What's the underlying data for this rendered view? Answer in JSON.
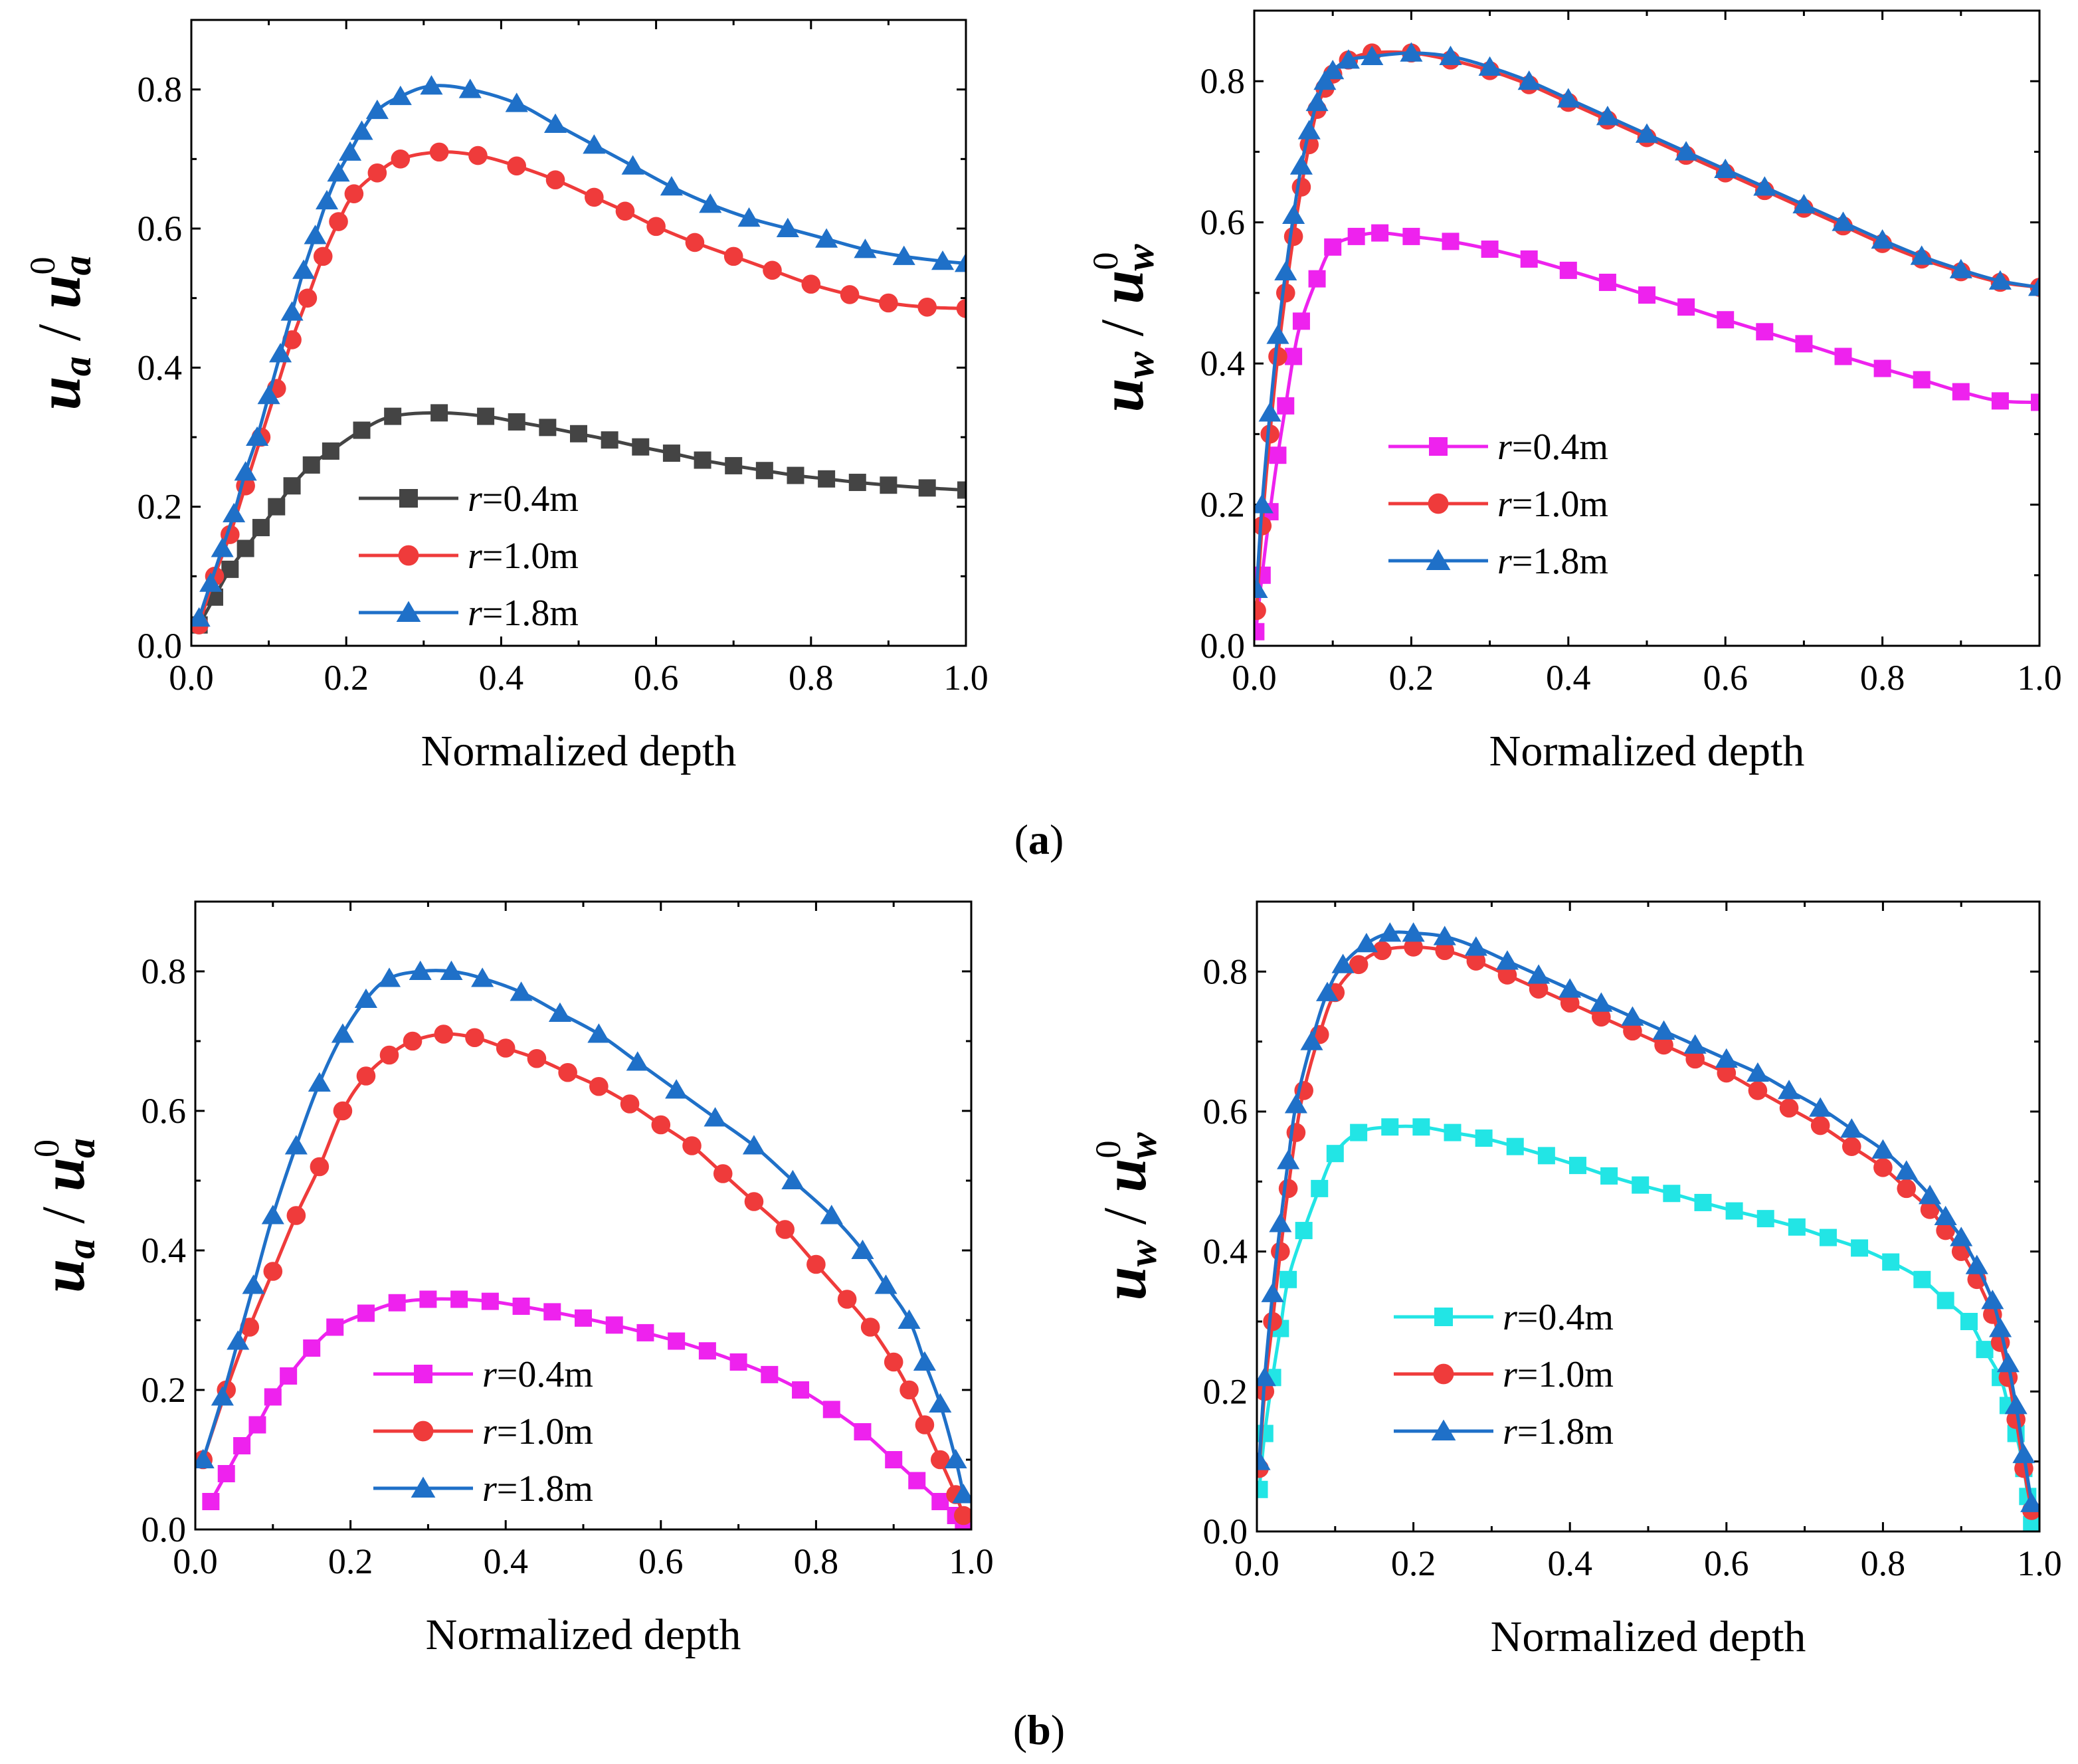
{
  "figure": {
    "panel_labels": [
      {
        "open": "(",
        "letter": "a",
        "close": ")"
      },
      {
        "open": "(",
        "letter": "b",
        "close": ")"
      }
    ]
  },
  "chart_data": [
    {
      "type": "line",
      "panel": "a-left",
      "xlabel": "Normalized depth",
      "ylabel": {
        "base": "u",
        "sub": "a",
        "sup": "0"
      },
      "xlim": [
        0,
        1
      ],
      "ylim": [
        0,
        0.9
      ],
      "xticks": [
        "0.0",
        "0.2",
        "0.4",
        "0.6",
        "0.8",
        "1.0"
      ],
      "yticks": [
        "0.0",
        "0.2",
        "0.4",
        "0.6",
        "0.8"
      ],
      "legend": {
        "position": "lower-middle",
        "entries": [
          {
            "italic": "r",
            "text": "=0.4m"
          },
          {
            "italic": "r",
            "text": "=1.0m"
          },
          {
            "italic": "r",
            "text": "=1.8m"
          }
        ]
      },
      "series": [
        {
          "label": "r=0.4m",
          "color": "#444444",
          "marker": "square",
          "x": [
            0.01,
            0.03,
            0.05,
            0.07,
            0.09,
            0.11,
            0.13,
            0.155,
            0.18,
            0.22,
            0.26,
            0.32,
            0.38,
            0.42,
            0.46,
            0.5,
            0.54,
            0.58,
            0.62,
            0.66,
            0.7,
            0.74,
            0.78,
            0.82,
            0.86,
            0.9,
            0.95,
            1.0
          ],
          "y": [
            0.03,
            0.07,
            0.11,
            0.14,
            0.17,
            0.2,
            0.23,
            0.26,
            0.28,
            0.31,
            0.33,
            0.335,
            0.33,
            0.322,
            0.314,
            0.305,
            0.296,
            0.286,
            0.277,
            0.267,
            0.259,
            0.252,
            0.245,
            0.24,
            0.235,
            0.231,
            0.227,
            0.224
          ]
        },
        {
          "label": "r=1.0m",
          "color": "#ef3b3b",
          "marker": "circle",
          "x": [
            0.01,
            0.03,
            0.05,
            0.07,
            0.09,
            0.11,
            0.13,
            0.15,
            0.17,
            0.19,
            0.21,
            0.24,
            0.27,
            0.32,
            0.37,
            0.42,
            0.47,
            0.52,
            0.56,
            0.6,
            0.65,
            0.7,
            0.75,
            0.8,
            0.85,
            0.9,
            0.95,
            1.0
          ],
          "y": [
            0.03,
            0.1,
            0.16,
            0.23,
            0.3,
            0.37,
            0.44,
            0.5,
            0.56,
            0.61,
            0.65,
            0.68,
            0.7,
            0.71,
            0.705,
            0.69,
            0.67,
            0.645,
            0.625,
            0.603,
            0.58,
            0.56,
            0.54,
            0.52,
            0.505,
            0.493,
            0.487,
            0.485
          ]
        },
        {
          "label": "r=1.8m",
          "color": "#1f70c8",
          "marker": "triangle",
          "x": [
            0.01,
            0.025,
            0.04,
            0.055,
            0.07,
            0.085,
            0.1,
            0.115,
            0.13,
            0.145,
            0.16,
            0.175,
            0.19,
            0.205,
            0.22,
            0.24,
            0.27,
            0.31,
            0.36,
            0.42,
            0.47,
            0.52,
            0.57,
            0.62,
            0.67,
            0.72,
            0.77,
            0.82,
            0.87,
            0.92,
            0.97,
            1.0
          ],
          "y": [
            0.04,
            0.09,
            0.14,
            0.19,
            0.25,
            0.3,
            0.36,
            0.42,
            0.48,
            0.54,
            0.59,
            0.64,
            0.68,
            0.71,
            0.74,
            0.77,
            0.79,
            0.805,
            0.8,
            0.78,
            0.75,
            0.72,
            0.69,
            0.66,
            0.635,
            0.615,
            0.6,
            0.585,
            0.57,
            0.56,
            0.553,
            0.55
          ]
        }
      ]
    },
    {
      "type": "line",
      "panel": "a-right",
      "xlabel": "Normalized depth",
      "ylabel": {
        "base": "u",
        "sub": "w",
        "sup": "0"
      },
      "xlim": [
        0,
        1
      ],
      "ylim": [
        0,
        0.9
      ],
      "xticks": [
        "0.0",
        "0.2",
        "0.4",
        "0.6",
        "0.8",
        "1.0"
      ],
      "yticks": [
        "0.0",
        "0.2",
        "0.4",
        "0.6",
        "0.8"
      ],
      "legend": {
        "position": "middle",
        "entries": [
          {
            "italic": "r",
            "text": "=0.4m"
          },
          {
            "italic": "r",
            "text": "=1.0m"
          },
          {
            "italic": "r",
            "text": "=1.8m"
          }
        ]
      },
      "series": [
        {
          "label": "r=0.4m",
          "color": "#ee22ee",
          "marker": "square",
          "x": [
            0.002,
            0.01,
            0.02,
            0.03,
            0.04,
            0.05,
            0.06,
            0.08,
            0.1,
            0.13,
            0.16,
            0.2,
            0.25,
            0.3,
            0.35,
            0.4,
            0.45,
            0.5,
            0.55,
            0.6,
            0.65,
            0.7,
            0.75,
            0.8,
            0.85,
            0.9,
            0.95,
            1.0
          ],
          "y": [
            0.02,
            0.1,
            0.19,
            0.27,
            0.34,
            0.41,
            0.46,
            0.52,
            0.565,
            0.58,
            0.585,
            0.58,
            0.573,
            0.562,
            0.548,
            0.532,
            0.515,
            0.497,
            0.48,
            0.462,
            0.445,
            0.428,
            0.41,
            0.393,
            0.377,
            0.36,
            0.347,
            0.345
          ]
        },
        {
          "label": "r=1.0m",
          "color": "#ef3b3b",
          "marker": "circle",
          "x": [
            0.003,
            0.01,
            0.02,
            0.03,
            0.04,
            0.05,
            0.06,
            0.07,
            0.08,
            0.09,
            0.1,
            0.12,
            0.15,
            0.2,
            0.25,
            0.3,
            0.35,
            0.4,
            0.45,
            0.5,
            0.55,
            0.6,
            0.65,
            0.7,
            0.75,
            0.8,
            0.85,
            0.9,
            0.95,
            1.0
          ],
          "y": [
            0.05,
            0.17,
            0.3,
            0.41,
            0.5,
            0.58,
            0.65,
            0.71,
            0.76,
            0.79,
            0.81,
            0.83,
            0.84,
            0.84,
            0.83,
            0.815,
            0.795,
            0.77,
            0.745,
            0.72,
            0.695,
            0.67,
            0.645,
            0.62,
            0.595,
            0.57,
            0.548,
            0.53,
            0.515,
            0.508
          ]
        },
        {
          "label": "r=1.8m",
          "color": "#1f70c8",
          "marker": "triangle",
          "x": [
            0.003,
            0.01,
            0.02,
            0.03,
            0.04,
            0.05,
            0.06,
            0.07,
            0.08,
            0.09,
            0.1,
            0.12,
            0.15,
            0.2,
            0.25,
            0.3,
            0.35,
            0.4,
            0.45,
            0.5,
            0.55,
            0.6,
            0.65,
            0.7,
            0.75,
            0.8,
            0.85,
            0.9,
            0.95,
            1.0
          ],
          "y": [
            0.08,
            0.2,
            0.33,
            0.44,
            0.53,
            0.61,
            0.68,
            0.73,
            0.77,
            0.8,
            0.815,
            0.83,
            0.835,
            0.84,
            0.835,
            0.82,
            0.8,
            0.775,
            0.75,
            0.725,
            0.7,
            0.675,
            0.65,
            0.625,
            0.6,
            0.575,
            0.552,
            0.533,
            0.517,
            0.508
          ]
        }
      ]
    },
    {
      "type": "line",
      "panel": "b-left",
      "xlabel": "Normalized depth",
      "ylabel": {
        "base": "u",
        "sub": "a",
        "sup": "0"
      },
      "xlim": [
        0,
        1
      ],
      "ylim": [
        0,
        0.9
      ],
      "xticks": [
        "0.0",
        "0.2",
        "0.4",
        "0.6",
        "0.8",
        "1.0"
      ],
      "yticks": [
        "0.0",
        "0.2",
        "0.4",
        "0.6",
        "0.8"
      ],
      "legend": {
        "position": "lower-middle",
        "entries": [
          {
            "italic": "r",
            "text": "=0.4m"
          },
          {
            "italic": "r",
            "text": "=1.0m"
          },
          {
            "italic": "r",
            "text": "=1.8m"
          }
        ]
      },
      "series": [
        {
          "label": "r=0.4m",
          "color": "#ee22ee",
          "marker": "square",
          "x": [
            0.02,
            0.04,
            0.06,
            0.08,
            0.1,
            0.12,
            0.15,
            0.18,
            0.22,
            0.26,
            0.3,
            0.34,
            0.38,
            0.42,
            0.46,
            0.5,
            0.54,
            0.58,
            0.62,
            0.66,
            0.7,
            0.74,
            0.78,
            0.82,
            0.86,
            0.9,
            0.93,
            0.96,
            0.98,
            0.99
          ],
          "y": [
            0.04,
            0.08,
            0.12,
            0.15,
            0.19,
            0.22,
            0.26,
            0.29,
            0.31,
            0.325,
            0.33,
            0.33,
            0.327,
            0.32,
            0.312,
            0.303,
            0.293,
            0.282,
            0.27,
            0.256,
            0.24,
            0.222,
            0.2,
            0.172,
            0.14,
            0.1,
            0.07,
            0.04,
            0.02,
            0.01
          ]
        },
        {
          "label": "r=1.0m",
          "color": "#ef3b3b",
          "marker": "circle",
          "x": [
            0.01,
            0.04,
            0.07,
            0.1,
            0.13,
            0.16,
            0.19,
            0.22,
            0.25,
            0.28,
            0.32,
            0.36,
            0.4,
            0.44,
            0.48,
            0.52,
            0.56,
            0.6,
            0.64,
            0.68,
            0.72,
            0.76,
            0.8,
            0.84,
            0.87,
            0.9,
            0.92,
            0.94,
            0.96,
            0.98,
            0.99
          ],
          "y": [
            0.1,
            0.2,
            0.29,
            0.37,
            0.45,
            0.52,
            0.6,
            0.65,
            0.68,
            0.7,
            0.71,
            0.705,
            0.69,
            0.675,
            0.655,
            0.635,
            0.61,
            0.58,
            0.55,
            0.51,
            0.47,
            0.43,
            0.38,
            0.33,
            0.29,
            0.24,
            0.2,
            0.15,
            0.1,
            0.05,
            0.02
          ]
        },
        {
          "label": "r=1.8m",
          "color": "#1f70c8",
          "marker": "triangle",
          "x": [
            0.01,
            0.035,
            0.055,
            0.075,
            0.1,
            0.13,
            0.16,
            0.19,
            0.22,
            0.25,
            0.29,
            0.33,
            0.37,
            0.42,
            0.47,
            0.52,
            0.57,
            0.62,
            0.67,
            0.72,
            0.77,
            0.82,
            0.86,
            0.89,
            0.92,
            0.94,
            0.96,
            0.98,
            0.99
          ],
          "y": [
            0.1,
            0.19,
            0.27,
            0.35,
            0.45,
            0.55,
            0.64,
            0.71,
            0.76,
            0.79,
            0.8,
            0.8,
            0.79,
            0.77,
            0.74,
            0.71,
            0.67,
            0.63,
            0.59,
            0.55,
            0.5,
            0.45,
            0.4,
            0.35,
            0.3,
            0.24,
            0.18,
            0.1,
            0.05
          ]
        }
      ]
    },
    {
      "type": "line",
      "panel": "b-right",
      "xlabel": "Normalized depth",
      "ylabel": {
        "base": "u",
        "sub": "w",
        "sup": "0"
      },
      "xlim": [
        0,
        1
      ],
      "ylim": [
        0,
        0.9
      ],
      "xticks": [
        "0.0",
        "0.2",
        "0.4",
        "0.6",
        "0.8",
        "1.0"
      ],
      "yticks": [
        "0.0",
        "0.2",
        "0.4",
        "0.6",
        "0.8"
      ],
      "legend": {
        "position": "lower-middle",
        "entries": [
          {
            "italic": "r",
            "text": "=0.4m"
          },
          {
            "italic": "r",
            "text": "=1.0m"
          },
          {
            "italic": "r",
            "text": "=1.8m"
          }
        ]
      },
      "series": [
        {
          "label": "r=0.4m",
          "color": "#22e5e5",
          "marker": "square",
          "x": [
            0.003,
            0.01,
            0.02,
            0.03,
            0.04,
            0.06,
            0.08,
            0.1,
            0.13,
            0.17,
            0.21,
            0.25,
            0.29,
            0.33,
            0.37,
            0.41,
            0.45,
            0.49,
            0.53,
            0.57,
            0.61,
            0.65,
            0.69,
            0.73,
            0.77,
            0.81,
            0.85,
            0.88,
            0.91,
            0.93,
            0.95,
            0.96,
            0.97,
            0.98,
            0.985,
            0.99
          ],
          "y": [
            0.06,
            0.14,
            0.22,
            0.29,
            0.36,
            0.43,
            0.49,
            0.54,
            0.57,
            0.578,
            0.578,
            0.57,
            0.562,
            0.55,
            0.537,
            0.523,
            0.508,
            0.495,
            0.483,
            0.47,
            0.458,
            0.447,
            0.435,
            0.42,
            0.405,
            0.385,
            0.36,
            0.33,
            0.3,
            0.26,
            0.22,
            0.18,
            0.14,
            0.09,
            0.05,
            0.01
          ]
        },
        {
          "label": "r=1.0m",
          "color": "#ef3b3b",
          "marker": "circle",
          "x": [
            0.003,
            0.01,
            0.02,
            0.03,
            0.04,
            0.05,
            0.06,
            0.08,
            0.1,
            0.13,
            0.16,
            0.2,
            0.24,
            0.28,
            0.32,
            0.36,
            0.4,
            0.44,
            0.48,
            0.52,
            0.56,
            0.6,
            0.64,
            0.68,
            0.72,
            0.76,
            0.8,
            0.83,
            0.86,
            0.88,
            0.9,
            0.92,
            0.94,
            0.95,
            0.96,
            0.97,
            0.98,
            0.99
          ],
          "y": [
            0.09,
            0.2,
            0.3,
            0.4,
            0.49,
            0.57,
            0.63,
            0.71,
            0.77,
            0.81,
            0.83,
            0.835,
            0.83,
            0.815,
            0.795,
            0.775,
            0.755,
            0.735,
            0.715,
            0.695,
            0.675,
            0.655,
            0.63,
            0.605,
            0.58,
            0.55,
            0.52,
            0.49,
            0.46,
            0.43,
            0.4,
            0.36,
            0.31,
            0.27,
            0.22,
            0.16,
            0.09,
            0.03
          ]
        },
        {
          "label": "r=1.8m",
          "color": "#1f70c8",
          "marker": "triangle",
          "x": [
            0.003,
            0.01,
            0.02,
            0.03,
            0.04,
            0.05,
            0.07,
            0.09,
            0.11,
            0.14,
            0.17,
            0.2,
            0.24,
            0.28,
            0.32,
            0.36,
            0.4,
            0.44,
            0.48,
            0.52,
            0.56,
            0.6,
            0.64,
            0.68,
            0.72,
            0.76,
            0.8,
            0.83,
            0.86,
            0.88,
            0.9,
            0.92,
            0.94,
            0.95,
            0.96,
            0.97,
            0.98,
            0.99
          ],
          "y": [
            0.1,
            0.22,
            0.34,
            0.44,
            0.53,
            0.61,
            0.7,
            0.77,
            0.81,
            0.84,
            0.855,
            0.855,
            0.85,
            0.835,
            0.815,
            0.795,
            0.775,
            0.755,
            0.735,
            0.715,
            0.695,
            0.675,
            0.655,
            0.63,
            0.605,
            0.575,
            0.545,
            0.515,
            0.48,
            0.45,
            0.42,
            0.38,
            0.33,
            0.29,
            0.24,
            0.18,
            0.11,
            0.04
          ]
        }
      ]
    }
  ]
}
